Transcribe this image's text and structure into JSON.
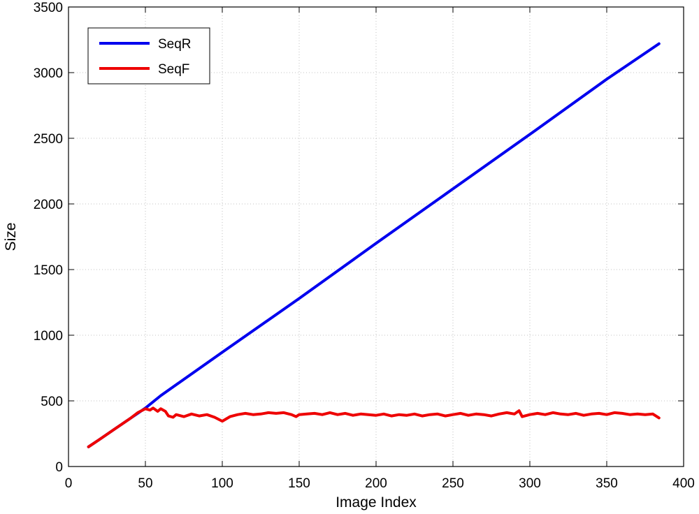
{
  "chart_data": {
    "type": "line",
    "title": "",
    "xlabel": "Image Index",
    "ylabel": "Size",
    "xlim": [
      0,
      400
    ],
    "ylim": [
      0,
      3500
    ],
    "xticks": [
      "0",
      "50",
      "100",
      "150",
      "200",
      "250",
      "300",
      "350",
      "400"
    ],
    "yticks": [
      "0",
      "500",
      "1000",
      "1500",
      "2000",
      "2500",
      "3000",
      "3500"
    ],
    "grid": true,
    "legend_position": "top-left",
    "series": [
      {
        "name": "SeqR",
        "color": "#0000ee",
        "x": [
          13,
          20,
          30,
          40,
          50,
          60,
          100,
          150,
          200,
          250,
          300,
          350,
          384
        ],
        "y": [
          150,
          205,
          285,
          365,
          445,
          540,
          870,
          1280,
          1700,
          2115,
          2530,
          2950,
          3220
        ]
      },
      {
        "name": "SeqF",
        "color": "#ee0000",
        "x": [
          13,
          20,
          30,
          40,
          45,
          50,
          53,
          55,
          58,
          60,
          63,
          65,
          68,
          70,
          75,
          80,
          85,
          90,
          95,
          100,
          105,
          110,
          115,
          120,
          125,
          130,
          135,
          140,
          145,
          148,
          150,
          155,
          160,
          165,
          170,
          175,
          180,
          185,
          190,
          195,
          200,
          205,
          210,
          215,
          220,
          225,
          230,
          235,
          240,
          245,
          250,
          255,
          260,
          265,
          270,
          275,
          280,
          285,
          290,
          293,
          295,
          300,
          305,
          310,
          315,
          320,
          325,
          330,
          335,
          340,
          345,
          350,
          355,
          360,
          365,
          370,
          375,
          380,
          384
        ],
        "y": [
          150,
          205,
          285,
          365,
          410,
          440,
          430,
          445,
          420,
          440,
          420,
          385,
          375,
          395,
          380,
          400,
          385,
          395,
          375,
          345,
          380,
          395,
          405,
          395,
          400,
          410,
          405,
          410,
          395,
          380,
          395,
          400,
          405,
          395,
          410,
          395,
          405,
          390,
          400,
          395,
          390,
          400,
          385,
          395,
          390,
          400,
          385,
          395,
          400,
          385,
          395,
          405,
          390,
          400,
          395,
          385,
          400,
          410,
          400,
          425,
          380,
          395,
          405,
          395,
          410,
          400,
          395,
          405,
          390,
          400,
          405,
          395,
          410,
          405,
          395,
          400,
          395,
          400,
          370
        ]
      }
    ]
  }
}
